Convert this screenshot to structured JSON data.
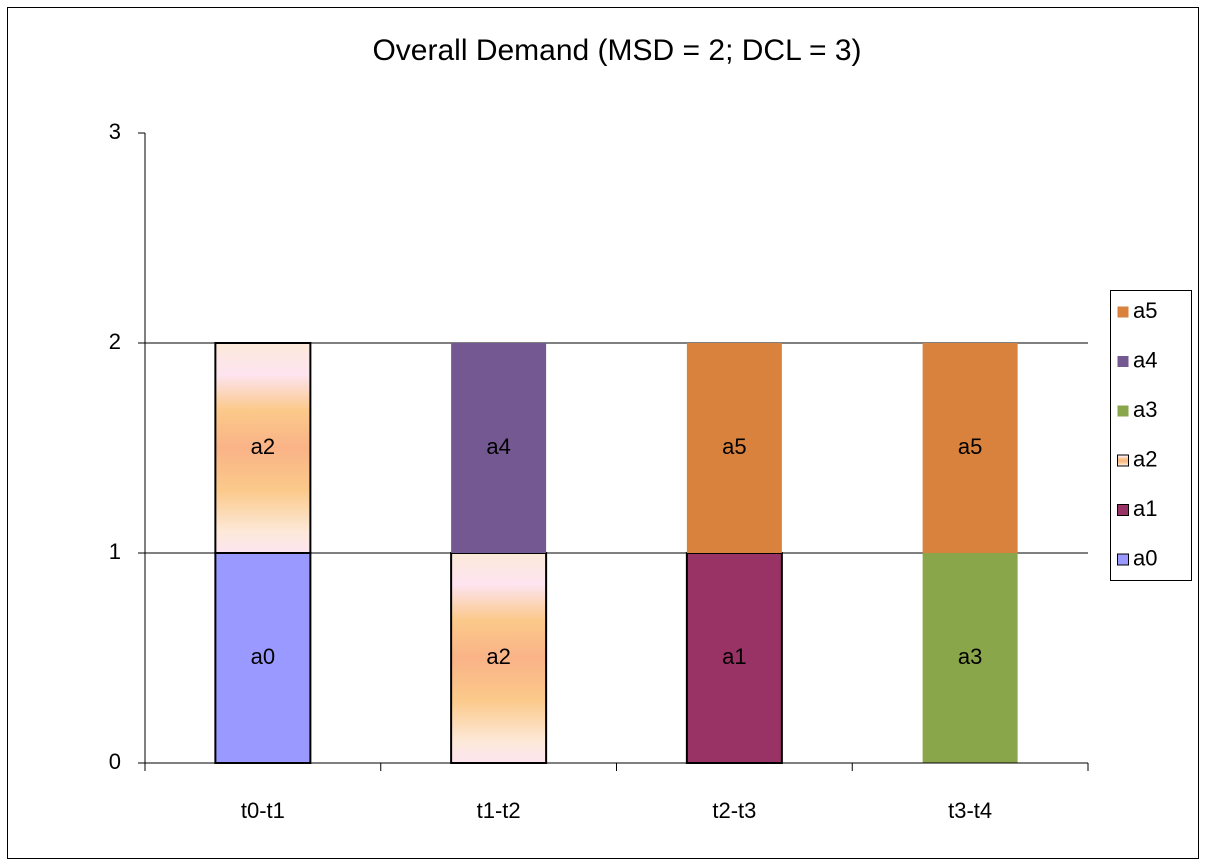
{
  "chart_data": {
    "type": "stacked_bar",
    "title": "Overall Demand (MSD = 2; DCL = 3)",
    "categories": [
      "t0-t1",
      "t1-t2",
      "t2-t3",
      "t3-t4"
    ],
    "series": [
      {
        "name": "a0",
        "color": "#9999ff",
        "outline": true,
        "values": [
          1,
          null,
          null,
          null
        ]
      },
      {
        "name": "a1",
        "color": "#993366",
        "outline": true,
        "values": [
          null,
          null,
          1,
          null
        ]
      },
      {
        "name": "a2",
        "color": "#fab387",
        "outline": true,
        "gradient": true,
        "values": [
          1,
          1,
          null,
          null
        ]
      },
      {
        "name": "a3",
        "color": "#8aa64b",
        "values": [
          null,
          null,
          null,
          1
        ]
      },
      {
        "name": "a4",
        "color": "#735891",
        "values": [
          null,
          1,
          null,
          null
        ]
      },
      {
        "name": "a5",
        "color": "#d9823e",
        "values": [
          null,
          null,
          1,
          1
        ]
      }
    ],
    "ylim": [
      0,
      3
    ],
    "yticks": [
      0,
      1,
      2,
      3
    ],
    "grid": true,
    "legend": "right"
  }
}
